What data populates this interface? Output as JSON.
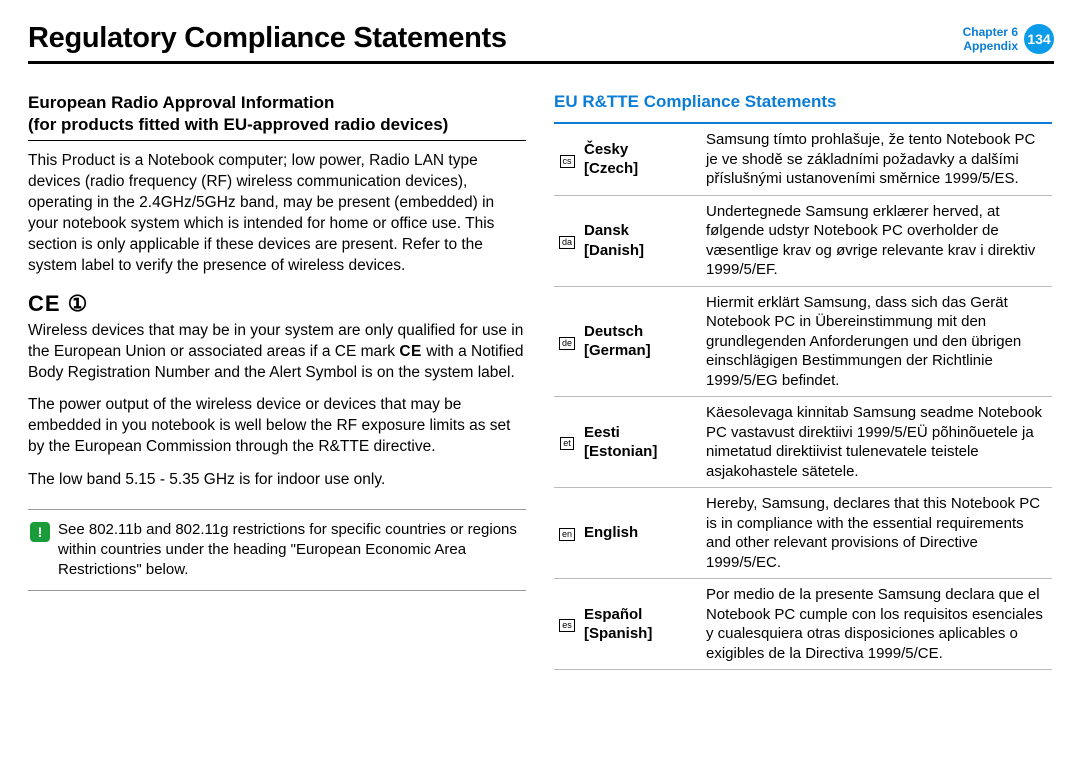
{
  "header": {
    "title": "Regulatory Compliance Statements",
    "chapter_line1": "Chapter 6",
    "chapter_line2": "Appendix",
    "page_number": "134"
  },
  "left": {
    "section_title_line1": "European Radio Approval Information",
    "section_title_line2": "(for products fitted with EU-approved radio devices)",
    "p1": "This Product is a Notebook computer; low power, Radio LAN type devices (radio frequency (RF) wireless communication devices), operating in the 2.4GHz/5GHz band, may be present (embedded) in your notebook system which is intended for home or office use. This section is only applicable if these devices are present. Refer to the system label to verify the presence of wireless devices.",
    "ce_mark": "CE ①",
    "p2a": "Wireless devices that may be in your system are only qualified for use in the European Union or associated areas if a CE mark ",
    "p2_inline_ce": "CE",
    "p2b": " with a Notified Body Registration Number and the Alert Symbol is on the system label.",
    "p3": "The power output of the wireless device or devices that may be embedded in you notebook is well below the RF exposure limits as set by the European Commission through the R&TTE directive.",
    "p4": "The low band 5.15 - 5.35 GHz is for indoor use only.",
    "note_icon": "!",
    "note": "See 802.11b and 802.11g restrictions for specific countries or regions within countries under the heading \"European Economic Area Restrictions\" below."
  },
  "right": {
    "title": "EU R&TTE Compliance Statements",
    "rows": [
      {
        "code": "cs",
        "lang_native": "Česky",
        "lang_en": "[Czech]",
        "text": "Samsung tímto prohlašuje, že tento Notebook PC je ve shodě se základními požadavky a dalšími příslušnými ustanoveními směrnice 1999/5/ES."
      },
      {
        "code": "da",
        "lang_native": "Dansk",
        "lang_en": "[Danish]",
        "text": "Undertegnede Samsung erklærer herved, at følgende udstyr Notebook PC overholder de væsentlige krav og øvrige relevante krav i direktiv 1999/5/EF."
      },
      {
        "code": "de",
        "lang_native": "Deutsch",
        "lang_en": "[German]",
        "text": "Hiermit erklärt Samsung, dass sich das Gerät Notebook PC in Übereinstimmung mit den grundlegenden Anforderungen und den übrigen einschlägigen Bestimmungen der Richtlinie 1999/5/EG befindet."
      },
      {
        "code": "et",
        "lang_native": "Eesti",
        "lang_en": "[Estonian]",
        "text": "Käesolevaga kinnitab Samsung seadme Notebook PC vastavust direktiivi 1999/5/EÜ põhinõuetele ja nimetatud direktiivist tulenevatele teistele asjakohastele sätetele."
      },
      {
        "code": "en",
        "lang_native": "English",
        "lang_en": "",
        "text": "Hereby, Samsung, declares that this Notebook PC is in compliance with the essential requirements and other relevant provisions of Directive 1999/5/EC."
      },
      {
        "code": "es",
        "lang_native": "Español",
        "lang_en": "[Spanish]",
        "text": "Por medio de la presente Samsung declara que el Notebook PC cumple con los requisitos esenciales y cualesquiera otras disposiciones aplicables o exigibles de la Directiva 1999/5/CE."
      }
    ]
  },
  "colors": {
    "blue": "#0b7dd6",
    "badge_blue": "#0b9be8",
    "green": "#1b9c3a"
  }
}
